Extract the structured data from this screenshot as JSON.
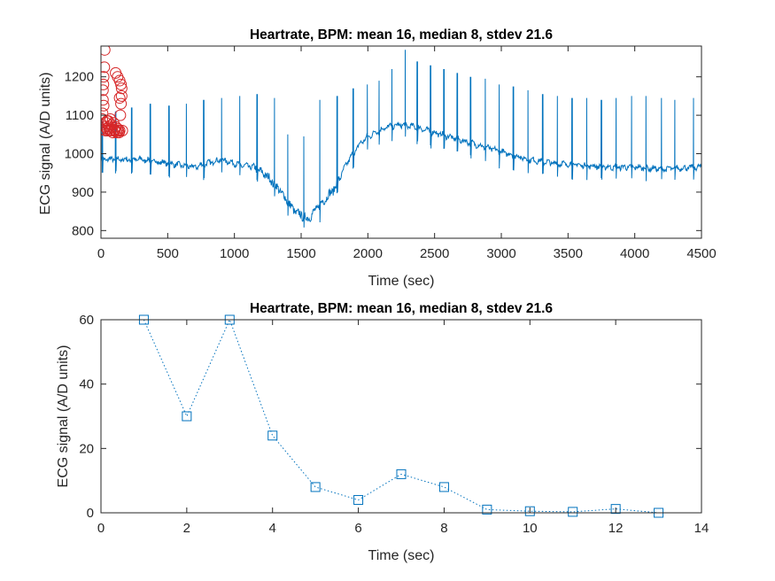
{
  "chart_data": [
    {
      "type": "line",
      "title": "Heartrate, BPM: mean 16, median 8, stdev 21.6",
      "xlabel": "Time (sec)",
      "ylabel": "ECG signal (A/D units)",
      "xlim": [
        0,
        4500
      ],
      "ylim": [
        780,
        1280
      ],
      "xticks": [
        0,
        500,
        1000,
        1500,
        2000,
        2500,
        3000,
        3500,
        4000,
        4500
      ],
      "yticks": [
        800,
        900,
        1000,
        1100,
        1200
      ],
      "colors": {
        "signal": "#0072BD",
        "peaks": "#D62728"
      },
      "signal_shape": {
        "x": [
          0,
          300,
          700,
          900,
          1050,
          1150,
          1250,
          1350,
          1450,
          1550,
          1650,
          1750,
          1850,
          1950,
          2050,
          2150,
          2250,
          2350,
          2450,
          2550,
          2650,
          2800,
          3000,
          3200,
          3400,
          3600,
          3800,
          4000,
          4200,
          4500
        ],
        "y": [
          985,
          985,
          965,
          985,
          970,
          965,
          940,
          900,
          850,
          830,
          870,
          910,
          980,
          1030,
          1055,
          1070,
          1075,
          1070,
          1060,
          1050,
          1040,
          1025,
          1005,
          985,
          975,
          970,
          965,
          965,
          960,
          965
        ]
      },
      "spike_times": [
        10,
        110,
        230,
        370,
        510,
        640,
        770,
        905,
        1040,
        1170,
        1300,
        1400,
        1520,
        1640,
        1770,
        1890,
        1995,
        2085,
        2180,
        2280,
        2370,
        2470,
        2570,
        2670,
        2770,
        2880,
        2985,
        3090,
        3200,
        3310,
        3420,
        3530,
        3640,
        3750,
        3860,
        3975,
        4085,
        4200,
        4300,
        4440
      ],
      "spike_heights": [
        1085,
        1110,
        1120,
        1130,
        1125,
        1130,
        1140,
        1145,
        1150,
        1155,
        1145,
        1050,
        1045,
        1140,
        1150,
        1170,
        1180,
        1190,
        1220,
        1270,
        1240,
        1230,
        1220,
        1210,
        1200,
        1195,
        1180,
        1175,
        1165,
        1155,
        1150,
        1145,
        1145,
        1140,
        1145,
        1150,
        1150,
        1145,
        1140,
        1145
      ],
      "detected_peaks": {
        "x": [
          5,
          8,
          10,
          12,
          15,
          18,
          20,
          25,
          30,
          35,
          40,
          45,
          50,
          55,
          60,
          65,
          70,
          75,
          80,
          85,
          90,
          95,
          100,
          105,
          110,
          115,
          120,
          125,
          130,
          135,
          140,
          145,
          150,
          155,
          160,
          28,
          45,
          65,
          110,
          125,
          140,
          150,
          15,
          20,
          140,
          155
        ],
        "y": [
          1063,
          1075,
          1090,
          1105,
          1140,
          1180,
          1200,
          1225,
          1070,
          1060,
          1080,
          1065,
          1060,
          1085,
          1070,
          1065,
          1090,
          1060,
          1075,
          1068,
          1055,
          1080,
          1062,
          1060,
          1070,
          1058,
          1055,
          1065,
          1060,
          1055,
          1060,
          1100,
          1130,
          1150,
          1060,
          1270,
          1085,
          1060,
          1210,
          1200,
          1190,
          1180,
          1165,
          1125,
          1145,
          1170
        ]
      }
    },
    {
      "type": "line",
      "title": "Heartrate, BPM: mean 16, median 8, stdev 21.6",
      "xlabel": "Time (sec)",
      "ylabel": "ECG signal (A/D units)",
      "xlim": [
        0,
        14
      ],
      "ylim": [
        0,
        60
      ],
      "xticks": [
        0,
        2,
        4,
        6,
        8,
        10,
        12,
        14
      ],
      "yticks": [
        0,
        20,
        40,
        60
      ],
      "line_style": "dotted",
      "marker": "square",
      "color": "#0072BD",
      "x": [
        1,
        2,
        3,
        4,
        5,
        6,
        7,
        8,
        9,
        10,
        11,
        12,
        13
      ],
      "y": [
        60,
        30,
        60,
        24,
        8,
        4,
        12,
        8,
        1,
        0.5,
        0.3,
        1.2,
        0
      ]
    }
  ]
}
